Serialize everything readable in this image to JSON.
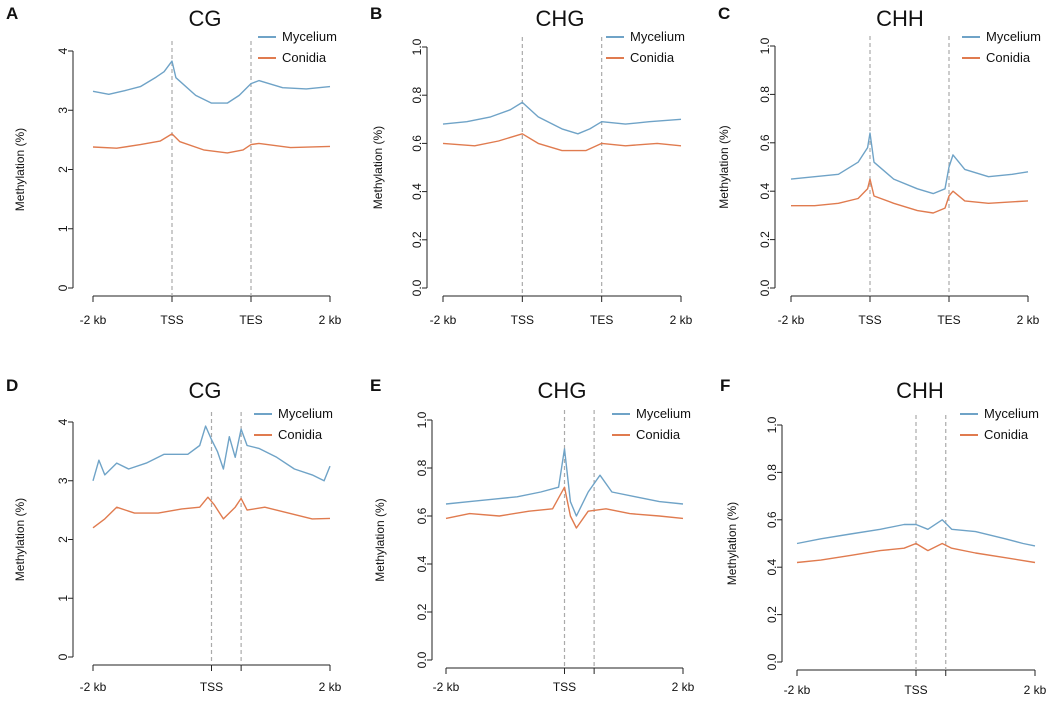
{
  "colors": {
    "mycelium": "#6fa3c7",
    "conidia": "#e07b4f"
  },
  "ylabel": "Methylation (%)",
  "legend": [
    "Mycelium",
    "Conidia"
  ],
  "chart_data": [
    {
      "letter": "A",
      "title": "CG",
      "type": "line",
      "ylim": [
        0,
        4
      ],
      "yticks": [
        "0",
        "1",
        "2",
        "3",
        "4"
      ],
      "xticks": [
        "-2 kb",
        "TSS",
        "TES",
        "2 kb"
      ],
      "markers": [
        1,
        2
      ],
      "series": [
        {
          "name": "Mycelium",
          "points": [
            [
              0,
              3.32
            ],
            [
              0.2,
              3.27
            ],
            [
              0.4,
              3.33
            ],
            [
              0.6,
              3.4
            ],
            [
              0.8,
              3.56
            ],
            [
              0.9,
              3.65
            ],
            [
              1,
              3.83
            ],
            [
              1.05,
              3.55
            ],
            [
              1.3,
              3.25
            ],
            [
              1.5,
              3.12
            ],
            [
              1.7,
              3.12
            ],
            [
              1.85,
              3.25
            ],
            [
              2,
              3.45
            ],
            [
              2.1,
              3.5
            ],
            [
              2.4,
              3.38
            ],
            [
              2.7,
              3.36
            ],
            [
              3,
              3.4
            ]
          ]
        },
        {
          "name": "Conidia",
          "points": [
            [
              0,
              2.38
            ],
            [
              0.3,
              2.36
            ],
            [
              0.6,
              2.42
            ],
            [
              0.85,
              2.48
            ],
            [
              1,
              2.6
            ],
            [
              1.1,
              2.47
            ],
            [
              1.4,
              2.33
            ],
            [
              1.7,
              2.28
            ],
            [
              1.9,
              2.33
            ],
            [
              2,
              2.42
            ],
            [
              2.1,
              2.44
            ],
            [
              2.5,
              2.37
            ],
            [
              3,
              2.39
            ]
          ]
        }
      ]
    },
    {
      "letter": "B",
      "title": "CHG",
      "type": "line",
      "ylim": [
        0,
        1
      ],
      "yticks": [
        "0.0",
        "0.2",
        "0.4",
        "0.6",
        "0.8",
        "1.0"
      ],
      "xticks": [
        "-2 kb",
        "TSS",
        "TES",
        "2 kb"
      ],
      "markers": [
        1,
        2
      ],
      "series": [
        {
          "name": "Mycelium",
          "points": [
            [
              0,
              0.68
            ],
            [
              0.3,
              0.69
            ],
            [
              0.6,
              0.71
            ],
            [
              0.85,
              0.74
            ],
            [
              1,
              0.77
            ],
            [
              1.2,
              0.71
            ],
            [
              1.5,
              0.66
            ],
            [
              1.7,
              0.64
            ],
            [
              1.85,
              0.66
            ],
            [
              2,
              0.69
            ],
            [
              2.3,
              0.68
            ],
            [
              2.6,
              0.69
            ],
            [
              3,
              0.7
            ]
          ]
        },
        {
          "name": "Conidia",
          "points": [
            [
              0,
              0.6
            ],
            [
              0.4,
              0.59
            ],
            [
              0.7,
              0.61
            ],
            [
              1,
              0.64
            ],
            [
              1.2,
              0.6
            ],
            [
              1.5,
              0.57
            ],
            [
              1.8,
              0.57
            ],
            [
              2,
              0.6
            ],
            [
              2.3,
              0.59
            ],
            [
              2.7,
              0.6
            ],
            [
              3,
              0.59
            ]
          ]
        }
      ]
    },
    {
      "letter": "C",
      "title": "CHH",
      "type": "line",
      "ylim": [
        0,
        1
      ],
      "yticks": [
        "0.0",
        "0.2",
        "0.4",
        "0.6",
        "0.8",
        "1.0"
      ],
      "xticks": [
        "-2 kb",
        "TSS",
        "TES",
        "2 kb"
      ],
      "markers": [
        1,
        2
      ],
      "series": [
        {
          "name": "Mycelium",
          "points": [
            [
              0,
              0.45
            ],
            [
              0.3,
              0.46
            ],
            [
              0.6,
              0.47
            ],
            [
              0.85,
              0.52
            ],
            [
              0.97,
              0.58
            ],
            [
              1,
              0.64
            ],
            [
              1.05,
              0.52
            ],
            [
              1.3,
              0.45
            ],
            [
              1.6,
              0.41
            ],
            [
              1.8,
              0.39
            ],
            [
              1.95,
              0.41
            ],
            [
              2,
              0.5
            ],
            [
              2.05,
              0.55
            ],
            [
              2.2,
              0.49
            ],
            [
              2.5,
              0.46
            ],
            [
              2.8,
              0.47
            ],
            [
              3,
              0.48
            ]
          ]
        },
        {
          "name": "Conidia",
          "points": [
            [
              0,
              0.34
            ],
            [
              0.3,
              0.34
            ],
            [
              0.6,
              0.35
            ],
            [
              0.85,
              0.37
            ],
            [
              0.97,
              0.41
            ],
            [
              1,
              0.45
            ],
            [
              1.05,
              0.38
            ],
            [
              1.3,
              0.35
            ],
            [
              1.6,
              0.32
            ],
            [
              1.8,
              0.31
            ],
            [
              1.95,
              0.33
            ],
            [
              2,
              0.38
            ],
            [
              2.05,
              0.4
            ],
            [
              2.2,
              0.36
            ],
            [
              2.5,
              0.35
            ],
            [
              3,
              0.36
            ]
          ]
        }
      ]
    },
    {
      "letter": "D",
      "title": "CG",
      "type": "line",
      "ylim": [
        0,
        4
      ],
      "yticks": [
        "0",
        "1",
        "2",
        "3",
        "4"
      ],
      "xticks": [
        "-2 kb",
        "TSS",
        "2 kb"
      ],
      "markers": [
        1,
        1.25
      ],
      "series": [
        {
          "name": "Mycelium",
          "points": [
            [
              0,
              3.0
            ],
            [
              0.05,
              3.35
            ],
            [
              0.1,
              3.1
            ],
            [
              0.2,
              3.3
            ],
            [
              0.3,
              3.2
            ],
            [
              0.45,
              3.3
            ],
            [
              0.6,
              3.45
            ],
            [
              0.8,
              3.45
            ],
            [
              0.9,
              3.6
            ],
            [
              0.95,
              3.93
            ],
            [
              1,
              3.7
            ],
            [
              1.05,
              3.5
            ],
            [
              1.1,
              3.2
            ],
            [
              1.15,
              3.75
            ],
            [
              1.2,
              3.4
            ],
            [
              1.25,
              3.88
            ],
            [
              1.3,
              3.6
            ],
            [
              1.4,
              3.55
            ],
            [
              1.55,
              3.4
            ],
            [
              1.7,
              3.2
            ],
            [
              1.85,
              3.1
            ],
            [
              1.95,
              3.0
            ],
            [
              2,
              3.25
            ]
          ]
        },
        {
          "name": "Conidia",
          "points": [
            [
              0,
              2.2
            ],
            [
              0.1,
              2.35
            ],
            [
              0.2,
              2.55
            ],
            [
              0.35,
              2.45
            ],
            [
              0.55,
              2.45
            ],
            [
              0.75,
              2.52
            ],
            [
              0.9,
              2.55
            ],
            [
              0.97,
              2.72
            ],
            [
              1.02,
              2.6
            ],
            [
              1.1,
              2.35
            ],
            [
              1.2,
              2.55
            ],
            [
              1.25,
              2.7
            ],
            [
              1.3,
              2.5
            ],
            [
              1.45,
              2.55
            ],
            [
              1.65,
              2.45
            ],
            [
              1.85,
              2.35
            ],
            [
              2,
              2.36
            ]
          ]
        }
      ]
    },
    {
      "letter": "E",
      "title": "CHG",
      "type": "line",
      "ylim": [
        0,
        1
      ],
      "yticks": [
        "0.0",
        "0.2",
        "0.4",
        "0.6",
        "0.8",
        "1.0"
      ],
      "xticks": [
        "-2 kb",
        "TSS",
        "2 kb"
      ],
      "markers": [
        1,
        1.25
      ],
      "series": [
        {
          "name": "Mycelium",
          "points": [
            [
              0,
              0.65
            ],
            [
              0.2,
              0.66
            ],
            [
              0.4,
              0.67
            ],
            [
              0.6,
              0.68
            ],
            [
              0.8,
              0.7
            ],
            [
              0.95,
              0.72
            ],
            [
              1,
              0.88
            ],
            [
              1.05,
              0.66
            ],
            [
              1.1,
              0.6
            ],
            [
              1.2,
              0.7
            ],
            [
              1.3,
              0.77
            ],
            [
              1.4,
              0.7
            ],
            [
              1.6,
              0.68
            ],
            [
              1.8,
              0.66
            ],
            [
              2,
              0.65
            ]
          ]
        },
        {
          "name": "Conidia",
          "points": [
            [
              0,
              0.59
            ],
            [
              0.2,
              0.61
            ],
            [
              0.45,
              0.6
            ],
            [
              0.7,
              0.62
            ],
            [
              0.9,
              0.63
            ],
            [
              1,
              0.72
            ],
            [
              1.05,
              0.6
            ],
            [
              1.1,
              0.55
            ],
            [
              1.2,
              0.62
            ],
            [
              1.35,
              0.63
            ],
            [
              1.55,
              0.61
            ],
            [
              1.8,
              0.6
            ],
            [
              2,
              0.59
            ]
          ]
        }
      ]
    },
    {
      "letter": "F",
      "title": "CHH",
      "type": "line",
      "ylim": [
        0,
        1
      ],
      "yticks": [
        "0.0",
        "0.2",
        "0.4",
        "0.6",
        "0.8",
        "1.0"
      ],
      "xticks": [
        "-2 kb",
        "TSS",
        "2 kb"
      ],
      "markers": [
        1,
        1.25
      ],
      "series": [
        {
          "name": "Mycelium",
          "points": [
            [
              0,
              0.5
            ],
            [
              0.2,
              0.52
            ],
            [
              0.45,
              0.54
            ],
            [
              0.7,
              0.56
            ],
            [
              0.9,
              0.58
            ],
            [
              1,
              0.58
            ],
            [
              1.1,
              0.56
            ],
            [
              1.22,
              0.6
            ],
            [
              1.3,
              0.56
            ],
            [
              1.5,
              0.55
            ],
            [
              1.75,
              0.52
            ],
            [
              1.9,
              0.5
            ],
            [
              2,
              0.49
            ]
          ]
        },
        {
          "name": "Conidia",
          "points": [
            [
              0,
              0.42
            ],
            [
              0.2,
              0.43
            ],
            [
              0.45,
              0.45
            ],
            [
              0.7,
              0.47
            ],
            [
              0.9,
              0.48
            ],
            [
              1,
              0.5
            ],
            [
              1.1,
              0.47
            ],
            [
              1.22,
              0.5
            ],
            [
              1.3,
              0.48
            ],
            [
              1.5,
              0.46
            ],
            [
              1.75,
              0.44
            ],
            [
              2,
              0.42
            ]
          ]
        }
      ]
    }
  ]
}
